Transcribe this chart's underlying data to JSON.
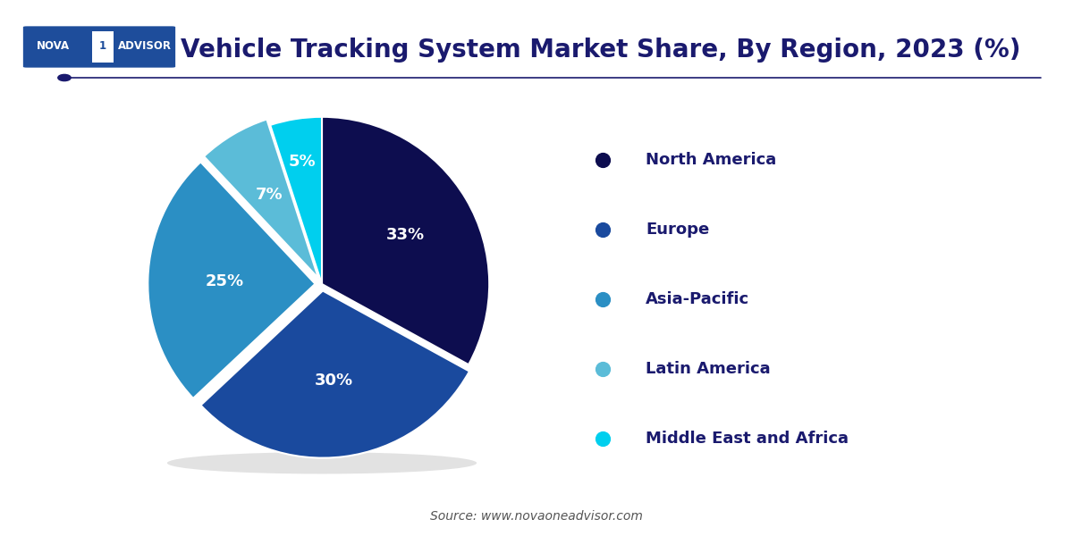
{
  "title": "Vehicle Tracking System Market Share, By Region, 2023 (%)",
  "title_color": "#1a1a6e",
  "title_fontsize": 20,
  "source_text": "Source: www.novaoneadvisor.com",
  "regions": [
    "North America",
    "Europe",
    "Asia-Pacific",
    "Latin America",
    "Middle East and Africa"
  ],
  "values": [
    33,
    30,
    25,
    7,
    5
  ],
  "colors": [
    "#0d0d4f",
    "#1a4a9e",
    "#2b8fc4",
    "#5bbcd8",
    "#00cfee"
  ],
  "pct_labels": [
    "33%",
    "30%",
    "25%",
    "7%",
    "5%"
  ],
  "explode": [
    0,
    0.04,
    0.04,
    0.04,
    0
  ],
  "startangle": 90,
  "legend_text_color": "#1a1a6e",
  "bg_color": "#ffffff",
  "line_color": "#1a1a6e",
  "logo_bg_color": "#1e4d9b"
}
